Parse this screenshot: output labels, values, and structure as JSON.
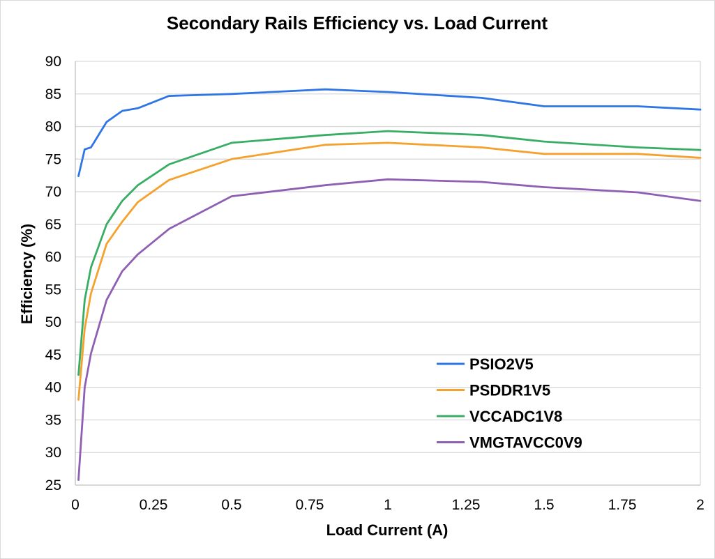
{
  "chart_data": {
    "type": "line",
    "title": "Secondary Rails Efficiency vs. Load Current",
    "xlabel": "Load Current (A)",
    "ylabel": "Efficiency (%)",
    "xlim": [
      0,
      2
    ],
    "ylim": [
      25,
      90
    ],
    "x_ticks": [
      0,
      0.25,
      0.5,
      0.75,
      1,
      1.25,
      1.5,
      1.75,
      2
    ],
    "x_tick_labels": [
      "0",
      "0.25",
      "0.5",
      "0.75",
      "1",
      "1.25",
      "1.5",
      "1.75",
      "2"
    ],
    "y_ticks": [
      25,
      30,
      35,
      40,
      45,
      50,
      55,
      60,
      65,
      70,
      75,
      80,
      85,
      90
    ],
    "y_tick_labels": [
      "25",
      "30",
      "35",
      "40",
      "45",
      "50",
      "55",
      "60",
      "65",
      "70",
      "75",
      "80",
      "85",
      "90"
    ],
    "grid": "horizontal",
    "legend_position": "bottom-right",
    "series": [
      {
        "name": "PSIO2V5",
        "color": "#2e75e6",
        "x": [
          0.01,
          0.03,
          0.05,
          0.1,
          0.15,
          0.2,
          0.3,
          0.5,
          0.8,
          1.0,
          1.3,
          1.5,
          1.8,
          2.0
        ],
        "y": [
          72.4,
          76.5,
          76.8,
          80.7,
          82.4,
          82.8,
          84.7,
          85.0,
          85.7,
          85.3,
          84.4,
          83.1,
          83.1,
          82.6
        ]
      },
      {
        "name": "PSDDR1V5",
        "color": "#f4a12e",
        "x": [
          0.01,
          0.03,
          0.05,
          0.1,
          0.15,
          0.2,
          0.3,
          0.5,
          0.8,
          1.0,
          1.3,
          1.5,
          1.8,
          2.0
        ],
        "y": [
          38.1,
          49.0,
          54.4,
          62.0,
          65.4,
          68.4,
          71.8,
          75.0,
          77.2,
          77.5,
          76.8,
          75.8,
          75.8,
          75.2
        ]
      },
      {
        "name": "VCCADC1V8",
        "color": "#3aad65",
        "x": [
          0.01,
          0.03,
          0.05,
          0.1,
          0.15,
          0.2,
          0.3,
          0.5,
          0.8,
          1.0,
          1.3,
          1.5,
          1.8,
          2.0
        ],
        "y": [
          41.9,
          53.4,
          58.4,
          65.0,
          68.6,
          71.0,
          74.2,
          77.5,
          78.7,
          79.3,
          78.7,
          77.7,
          76.8,
          76.4
        ]
      },
      {
        "name": "VMGTAVCC0V9",
        "color": "#8e5fb3",
        "x": [
          0.01,
          0.03,
          0.05,
          0.1,
          0.15,
          0.2,
          0.3,
          0.5,
          0.8,
          1.0,
          1.3,
          1.5,
          1.8,
          2.0
        ],
        "y": [
          25.8,
          40.0,
          45.2,
          53.4,
          57.8,
          60.4,
          64.3,
          69.3,
          71.0,
          71.9,
          71.5,
          70.7,
          69.9,
          68.6
        ]
      }
    ]
  }
}
